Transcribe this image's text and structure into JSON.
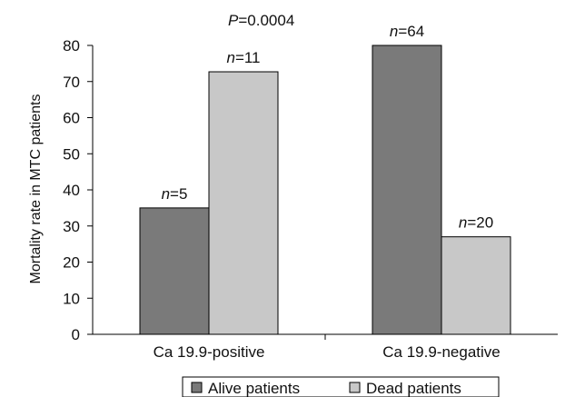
{
  "chart_data": {
    "type": "bar",
    "title": "",
    "xlabel": "",
    "ylabel": "Mortality rate in MTC patients",
    "ylim": [
      0,
      80
    ],
    "yticks": [
      0,
      10,
      20,
      30,
      40,
      50,
      60,
      70,
      80
    ],
    "categories": [
      "Ca 19.9-positive",
      "Ca 19.9-negative"
    ],
    "series": [
      {
        "name": "Alive patients",
        "color": "#7a7a7a",
        "values": [
          35,
          80
        ],
        "labels": [
          "n=5",
          "n=64"
        ]
      },
      {
        "name": "Dead patients",
        "color": "#c8c8c8",
        "values": [
          72.7,
          27
        ],
        "labels": [
          "n=11",
          "n=20"
        ]
      }
    ],
    "annotations": [
      {
        "text_italic": "P",
        "text_rest": "=0.0004"
      }
    ],
    "grid": false,
    "legend_position": "bottom"
  }
}
